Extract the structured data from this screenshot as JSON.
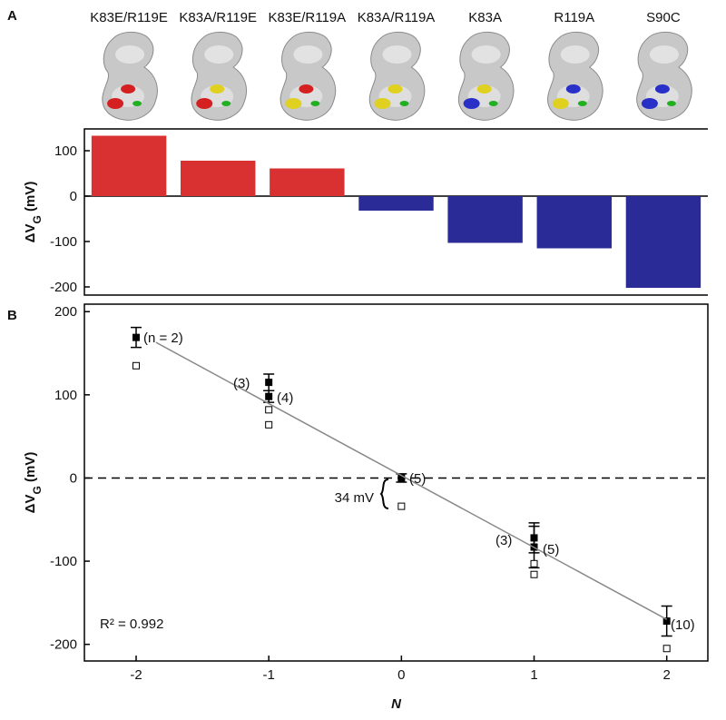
{
  "chart_data": [
    {
      "type": "bar",
      "panel": "A",
      "categories": [
        "K83E/R119E",
        "K83A/R119E",
        "K83E/R119A",
        "K83A/R119A",
        "K83A",
        "R119A",
        "S90C"
      ],
      "values": [
        133,
        78,
        61,
        -32,
        -103,
        -115,
        -202
      ],
      "colors": [
        "#d93131",
        "#d93131",
        "#d93131",
        "#2b2b98",
        "#2b2b98",
        "#2b2b98",
        "#2b2b98"
      ],
      "ylabel": [
        "ΔV",
        "G",
        " (mV)"
      ],
      "ylim": [
        -218,
        148
      ],
      "yticks": [
        -200,
        -100,
        0,
        100
      ]
    },
    {
      "type": "scatter",
      "panel": "B",
      "series": [
        {
          "marker": "filled",
          "x": [
            -2,
            -1,
            -1,
            0,
            1,
            1,
            2
          ],
          "values": [
            169,
            115,
            98,
            0,
            -72,
            -83,
            -172
          ],
          "errors": [
            12,
            10,
            7,
            5,
            18,
            25,
            18
          ]
        },
        {
          "marker": "open",
          "x": [
            -2,
            -1,
            -1,
            0,
            1,
            1,
            2
          ],
          "values": [
            135,
            82,
            64,
            -34,
            -103,
            -116,
            -205
          ]
        },
        {
          "marker": "line",
          "color": "#888888",
          "x": [
            -1.85,
            2
          ],
          "values": [
            163,
            -170
          ]
        }
      ],
      "hline": 0,
      "annotations": [
        "(n = 2)",
        "(3)",
        "(4)",
        "(5)",
        "(3)",
        "(5)",
        "(10)",
        "34 mV",
        "R² = 0.992"
      ],
      "xlabel": "N",
      "ylabel": [
        "ΔV",
        "G",
        " (mV)"
      ],
      "xlim": [
        -2.39,
        2.31
      ],
      "xticks": [
        -2,
        -1,
        0,
        1,
        2
      ],
      "ylim": [
        -220,
        209
      ],
      "yticks": [
        -200,
        -100,
        0,
        100,
        200
      ]
    }
  ]
}
